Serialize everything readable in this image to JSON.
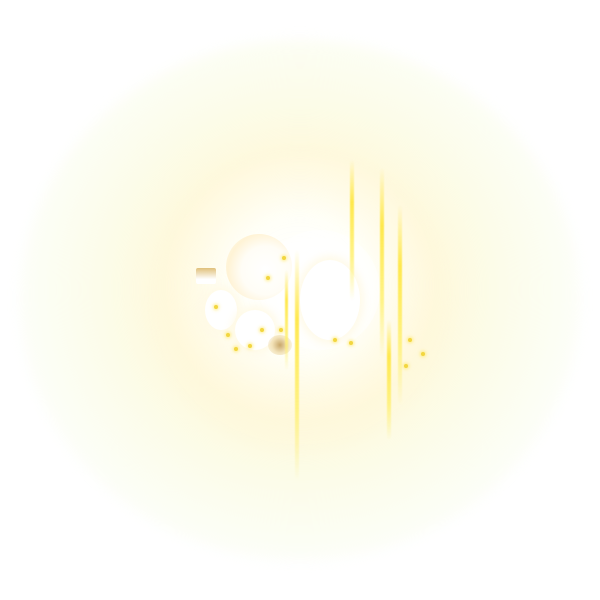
{
  "effect": {
    "name": "light-burst",
    "colors": {
      "halo": "#fff5cc",
      "core": "#ffffff",
      "streak": "#ffe63c",
      "sparkle": "#f2d640"
    }
  }
}
